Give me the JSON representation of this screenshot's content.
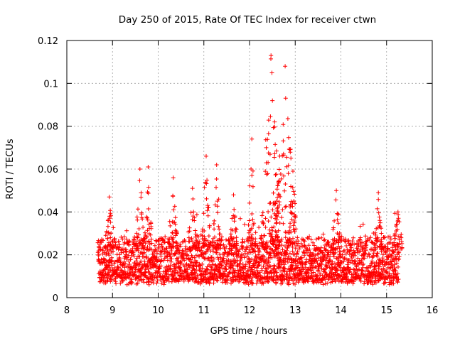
{
  "chart_data": {
    "type": "scatter",
    "title": "Day 250 of 2015, Rate Of TEC Index for receiver ctwn",
    "xlabel": "GPS time / hours",
    "ylabel": "ROTI / TECUs",
    "xlim": [
      8,
      16
    ],
    "ylim": [
      0,
      0.12
    ],
    "xticks": [
      "8",
      "9",
      "10",
      "11",
      "12",
      "13",
      "14",
      "15",
      "16"
    ],
    "yticks": [
      "0",
      "0.02",
      "0.04",
      "0.06",
      "0.08",
      "0.1",
      "0.12"
    ],
    "grid": true,
    "marker": "+",
    "color": "#ff0000",
    "series": [
      {
        "name": "ROTI",
        "x_range": [
          8.68,
          15.28
        ],
        "baseline_typical": [
          0.008,
          0.025
        ],
        "peaks": [
          {
            "x": 8.93,
            "y": 0.047
          },
          {
            "x": 9.6,
            "y": 0.06
          },
          {
            "x": 9.78,
            "y": 0.061
          },
          {
            "x": 10.33,
            "y": 0.056
          },
          {
            "x": 10.75,
            "y": 0.051
          },
          {
            "x": 11.05,
            "y": 0.066
          },
          {
            "x": 11.28,
            "y": 0.062
          },
          {
            "x": 11.65,
            "y": 0.048
          },
          {
            "x": 12.05,
            "y": 0.074
          },
          {
            "x": 12.47,
            "y": 0.113
          },
          {
            "x": 12.55,
            "y": 0.082
          },
          {
            "x": 12.78,
            "y": 0.108
          },
          {
            "x": 12.95,
            "y": 0.059
          },
          {
            "x": 13.9,
            "y": 0.05
          },
          {
            "x": 14.82,
            "y": 0.049
          },
          {
            "x": 15.25,
            "y": 0.04
          }
        ]
      }
    ]
  }
}
